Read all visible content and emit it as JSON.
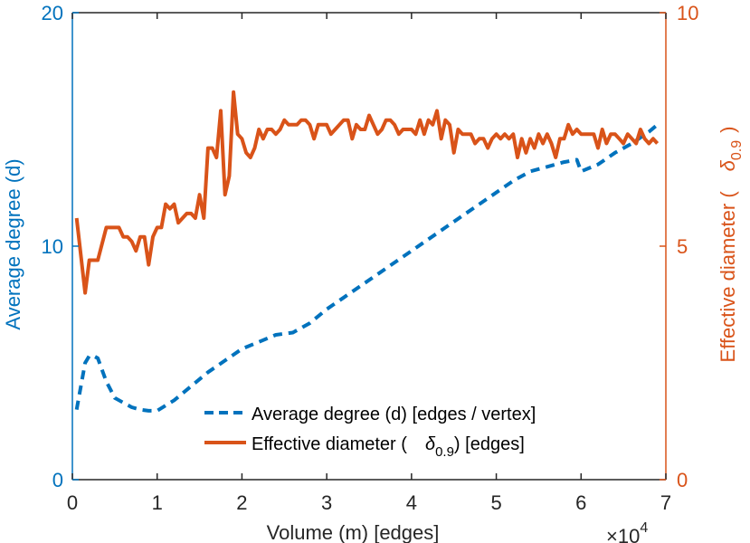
{
  "chart_data": {
    "type": "line",
    "xlabel": "Volume (m) [edges]",
    "x_multiplier_label": "×10",
    "x_multiplier_exponent": "4",
    "ylabel_left": "Average degree (d)",
    "ylabel_right_main": "Effective diameter (",
    "ylabel_right_symbol": "δ",
    "ylabel_right_sub": "0.9",
    "ylabel_right_close": ")",
    "xlim": [
      0,
      7
    ],
    "ylim_left": [
      0,
      20
    ],
    "ylim_right": [
      0,
      10
    ],
    "xticks": [
      0,
      1,
      2,
      3,
      4,
      5,
      6,
      7
    ],
    "yticks_left": [
      0,
      10,
      20
    ],
    "yticks_right": [
      0,
      5,
      10
    ],
    "legend": {
      "position": "bottom-center",
      "entries": [
        {
          "label": "Average degree (d) [edges / vertex]"
        },
        {
          "label_prefix": "Effective diameter (",
          "symbol": "δ",
          "sub": "0.9",
          "label_suffix": ") [edges]"
        }
      ]
    },
    "series": [
      {
        "name": "Average degree (d) [edges / vertex]",
        "axis": "left",
        "color": "#0072BD",
        "style": "dashed",
        "x": [
          0.05,
          0.1,
          0.15,
          0.2,
          0.25,
          0.3,
          0.4,
          0.5,
          0.6,
          0.7,
          0.8,
          0.9,
          1.0,
          1.2,
          1.4,
          1.6,
          1.8,
          2.0,
          2.2,
          2.4,
          2.6,
          2.8,
          3.0,
          3.2,
          3.4,
          3.6,
          3.8,
          4.0,
          4.2,
          4.4,
          4.6,
          4.8,
          5.0,
          5.2,
          5.4,
          5.6,
          5.8,
          5.95,
          6.0,
          6.2,
          6.4,
          6.6,
          6.8,
          6.9
        ],
        "values": [
          3.0,
          4.0,
          5.0,
          5.3,
          5.3,
          5.2,
          4.2,
          3.5,
          3.3,
          3.1,
          3.0,
          2.95,
          2.95,
          3.4,
          4.0,
          4.6,
          5.1,
          5.6,
          5.9,
          6.2,
          6.3,
          6.7,
          7.3,
          7.8,
          8.3,
          8.8,
          9.3,
          9.8,
          10.3,
          10.8,
          11.3,
          11.8,
          12.3,
          12.8,
          13.2,
          13.4,
          13.6,
          13.7,
          13.2,
          13.5,
          14.0,
          14.4,
          14.9,
          15.2
        ]
      },
      {
        "name": "Effective diameter (δ0.9) [edges]",
        "axis": "right",
        "color": "#D95319",
        "style": "solid",
        "x": [
          0.05,
          0.15,
          0.2,
          0.3,
          0.4,
          0.5,
          0.55,
          0.6,
          0.65,
          0.7,
          0.75,
          0.8,
          0.85,
          0.9,
          0.95,
          1.0,
          1.05,
          1.1,
          1.15,
          1.2,
          1.25,
          1.3,
          1.35,
          1.4,
          1.45,
          1.5,
          1.55,
          1.6,
          1.65,
          1.7,
          1.75,
          1.8,
          1.85,
          1.9,
          1.95,
          2.0,
          2.05,
          2.1,
          2.15,
          2.2,
          2.25,
          2.3,
          2.35,
          2.4,
          2.45,
          2.5,
          2.55,
          2.6,
          2.65,
          2.7,
          2.75,
          2.8,
          2.85,
          2.9,
          2.95,
          3.0,
          3.05,
          3.1,
          3.15,
          3.2,
          3.25,
          3.3,
          3.35,
          3.4,
          3.45,
          3.5,
          3.55,
          3.6,
          3.65,
          3.7,
          3.75,
          3.8,
          3.85,
          3.9,
          3.95,
          4.0,
          4.05,
          4.1,
          4.15,
          4.2,
          4.25,
          4.3,
          4.35,
          4.4,
          4.45,
          4.5,
          4.55,
          4.6,
          4.65,
          4.7,
          4.75,
          4.8,
          4.85,
          4.9,
          4.95,
          5.0,
          5.05,
          5.1,
          5.15,
          5.2,
          5.25,
          5.3,
          5.35,
          5.4,
          5.45,
          5.5,
          5.55,
          5.6,
          5.65,
          5.7,
          5.75,
          5.8,
          5.85,
          5.9,
          5.95,
          6.0,
          6.05,
          6.1,
          6.15,
          6.2,
          6.25,
          6.3,
          6.35,
          6.4,
          6.45,
          6.5,
          6.55,
          6.6,
          6.65,
          6.7,
          6.75,
          6.8,
          6.85,
          6.9
        ],
        "values": [
          5.6,
          4.0,
          4.7,
          4.7,
          5.4,
          5.4,
          5.4,
          5.2,
          5.2,
          5.1,
          4.9,
          5.2,
          5.2,
          4.6,
          5.2,
          5.4,
          5.4,
          5.9,
          5.8,
          5.9,
          5.5,
          5.6,
          5.7,
          5.7,
          5.6,
          6.1,
          5.6,
          7.1,
          7.1,
          6.9,
          7.9,
          6.1,
          6.5,
          8.3,
          7.4,
          7.3,
          7.0,
          6.9,
          7.1,
          7.5,
          7.3,
          7.5,
          7.5,
          7.4,
          7.5,
          7.7,
          7.6,
          7.6,
          7.6,
          7.7,
          7.7,
          7.6,
          7.3,
          7.6,
          7.6,
          7.6,
          7.4,
          7.5,
          7.6,
          7.7,
          7.7,
          7.3,
          7.6,
          7.5,
          7.5,
          7.8,
          7.6,
          7.4,
          7.5,
          7.7,
          7.7,
          7.6,
          7.4,
          7.5,
          7.5,
          7.5,
          7.4,
          7.7,
          7.4,
          7.7,
          7.6,
          7.9,
          7.3,
          7.7,
          7.6,
          7.0,
          7.5,
          7.4,
          7.4,
          7.4,
          7.2,
          7.3,
          7.3,
          7.1,
          7.3,
          7.4,
          7.3,
          7.4,
          7.3,
          7.4,
          6.9,
          7.3,
          7.0,
          7.3,
          7.1,
          7.4,
          7.2,
          7.4,
          7.2,
          6.9,
          7.3,
          7.3,
          7.6,
          7.4,
          7.5,
          7.4,
          7.4,
          7.4,
          7.4,
          7.1,
          7.5,
          7.2,
          7.4,
          7.4,
          7.3,
          7.2,
          7.4,
          7.3,
          7.2,
          7.5,
          7.3,
          7.2,
          7.3,
          7.2
        ]
      }
    ]
  }
}
